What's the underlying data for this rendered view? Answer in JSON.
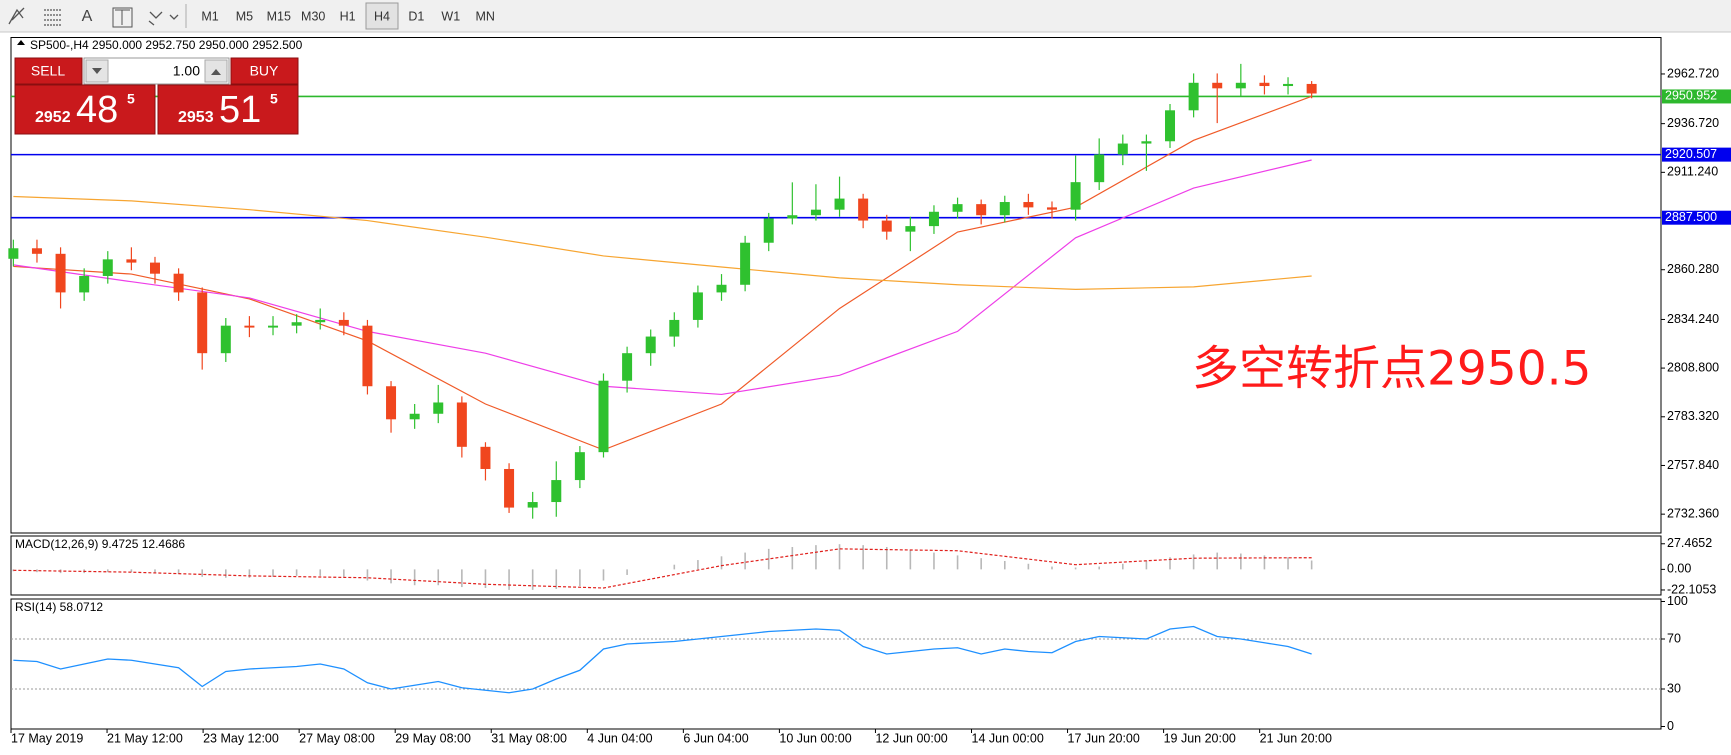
{
  "toolbar": {
    "text_tool": "A",
    "timeframes": [
      "M1",
      "M5",
      "M15",
      "M30",
      "H1",
      "H4",
      "D1",
      "W1",
      "MN"
    ],
    "active": 5
  },
  "trade_panel": {
    "sell": "SELL",
    "lots": "1.00",
    "buy": "BUY",
    "bid": {
      "big": "2952",
      "mid": "48",
      "small": "5"
    },
    "ask": {
      "big": "2953",
      "mid": "51",
      "small": "5"
    }
  },
  "chart_data": [
    {
      "type": "candlestick",
      "title": "SP500-,H4  2950.000 2952.750 2950.000 2952.500",
      "annotation": "多空转折点2950.5",
      "annotation_color": "#ff1a1a",
      "x_labels": [
        "17 May 2019",
        "21 May 12:00",
        "23 May 12:00",
        "27 May 08:00",
        "29 May 08:00",
        "31 May 08:00",
        "4 Jun 04:00",
        "6 Jun 04:00",
        "10 Jun 00:00",
        "12 Jun 00:00",
        "14 Jun 00:00",
        "17 Jun 20:00",
        "19 Jun 20:00",
        "21 Jun 20:00"
      ],
      "open": [
        2866.0,
        2871.5,
        2868.6,
        2848.4,
        2857.0,
        2865.7,
        2864.0,
        2858.2,
        2848.4,
        2816.6,
        2831.0,
        2830.0,
        2831.0,
        2832.8,
        2834.0,
        2831.0,
        2799.3,
        2782.0,
        2784.9,
        2790.8,
        2767.6,
        2756.0,
        2735.8,
        2738.7,
        2750.2,
        2764.8,
        2802.2,
        2816.6,
        2825.3,
        2834.0,
        2848.4,
        2852.4,
        2874.4,
        2887.1,
        2888.8,
        2891.7,
        2897.5,
        2886.0,
        2880.2,
        2883.1,
        2890.6,
        2894.6,
        2888.8,
        2895.7,
        2892.9,
        2891.7,
        2906.1,
        2920.6,
        2926.3,
        2927.5,
        2943.7,
        2958.1,
        2955.2,
        2958.1,
        2956.4,
        2957.5
      ],
      "high": [
        2876,
        2876,
        2872,
        2861,
        2870,
        2872,
        2867,
        2861,
        2851,
        2835,
        2836,
        2836,
        2837,
        2840,
        2838,
        2834,
        2802,
        2790,
        2800,
        2794,
        2770,
        2759,
        2744,
        2760,
        2768,
        2806,
        2820,
        2829,
        2838,
        2852,
        2858,
        2878,
        2890,
        2906,
        2905,
        2909,
        2900,
        2889,
        2888,
        2894,
        2898,
        2897,
        2899,
        2900,
        2896,
        2920,
        2929,
        2931,
        2931,
        2947,
        2963,
        2963,
        2968,
        2962,
        2961,
        2959
      ],
      "low": [
        2862,
        2864,
        2840,
        2844,
        2853,
        2860,
        2853,
        2844,
        2808,
        2812,
        2825,
        2826,
        2827,
        2829,
        2826,
        2795,
        2775,
        2777,
        2780,
        2762,
        2750,
        2733,
        2730,
        2731,
        2746,
        2762,
        2796,
        2810,
        2820,
        2830,
        2844,
        2849,
        2870,
        2884,
        2886,
        2888,
        2882,
        2876,
        2870,
        2879,
        2887,
        2884,
        2885,
        2889,
        2887,
        2886,
        2902,
        2915,
        2912,
        2924,
        2940,
        2937,
        2951,
        2952,
        2952,
        2950
      ],
      "close": [
        2871.5,
        2868.6,
        2848.4,
        2857.0,
        2865.7,
        2864.0,
        2858.2,
        2848.4,
        2816.6,
        2831.0,
        2830.0,
        2831.0,
        2832.8,
        2834.0,
        2831.0,
        2799.3,
        2782.0,
        2784.9,
        2790.8,
        2767.6,
        2756.0,
        2735.8,
        2738.7,
        2750.2,
        2764.8,
        2802.2,
        2816.6,
        2825.3,
        2834.0,
        2848.4,
        2852.4,
        2874.4,
        2887.1,
        2888.8,
        2891.7,
        2897.5,
        2886.0,
        2880.2,
        2883.1,
        2890.6,
        2894.6,
        2888.8,
        2895.7,
        2892.9,
        2891.7,
        2906.1,
        2920.6,
        2926.3,
        2927.5,
        2943.7,
        2958.1,
        2955.2,
        2958.1,
        2956.4,
        2957.5,
        2952.5
      ],
      "up_color": "#2fc12f",
      "down_color": "#f0461e",
      "lines": [
        {
          "color": "#f05a28",
          "x": [
            0,
            5,
            10,
            15,
            20,
            25,
            30,
            35,
            40,
            45,
            50,
            55
          ],
          "values": [
            2862,
            2858,
            2845,
            2823,
            2790,
            2766,
            2790,
            2840,
            2880,
            2893,
            2928,
            2951
          ]
        },
        {
          "color": "#ee3ee8",
          "x": [
            0,
            5,
            10,
            15,
            20,
            25,
            30,
            35,
            40,
            45,
            50,
            55
          ],
          "values": [
            2862.8,
            2854,
            2845.5,
            2828,
            2816.6,
            2799.3,
            2795,
            2805,
            2828,
            2877,
            2903,
            2917.7
          ]
        },
        {
          "color": "#f7a531",
          "x": [
            0,
            5,
            10,
            15,
            20,
            25,
            30,
            35,
            40,
            45,
            50,
            55
          ],
          "values": [
            2898.6,
            2896.3,
            2891.7,
            2886,
            2877.3,
            2867.5,
            2861.7,
            2856,
            2852.4,
            2850,
            2851.3,
            2857
          ]
        }
      ],
      "levels": [
        {
          "value": 2920.507,
          "color": "#0000ee"
        },
        {
          "value": 2887.5,
          "label": "2887.500",
          "color": "#0000ee"
        },
        {
          "value": 2950.952,
          "color": "#2db82d"
        }
      ],
      "xlim": [
        -0.1,
        69.8
      ],
      "ylim": [
        2722.5,
        2981.8
      ],
      "yticks": [
        {
          "value": 2962.72,
          "label": "2962.720"
        },
        {
          "value": 2936.72,
          "label": "2936.720"
        },
        {
          "value": 2911.24,
          "label": "2911.240"
        },
        {
          "value": 2860.28,
          "label": "2860.280"
        },
        {
          "value": 2834.24,
          "label": "2834.240"
        },
        {
          "value": 2808.8,
          "label": "2808.800"
        },
        {
          "value": 2783.32,
          "label": "2783.320"
        },
        {
          "value": 2757.84,
          "label": "2757.840"
        },
        {
          "value": 2732.36,
          "label": "2732.360"
        }
      ]
    },
    {
      "type": "macd",
      "title": "MACD(12,26,9) 9.4725 12.4686",
      "color": "#b8b8b8",
      "values": [
        -2,
        -3,
        -4,
        -4,
        -3,
        -3,
        -4,
        -5,
        -8,
        -9,
        -9,
        -8,
        -7,
        -7,
        -8,
        -12,
        -15,
        -17,
        -17,
        -19,
        -20,
        -22,
        -22,
        -21,
        -18,
        -12,
        -6,
        0,
        5,
        10,
        14,
        18,
        22,
        24,
        26,
        27,
        26,
        24,
        21,
        18,
        15,
        12,
        9,
        6,
        3,
        2,
        3,
        6,
        9,
        13,
        16,
        18,
        17,
        15,
        13,
        9.5
      ],
      "signal": {
        "color": "#e0201c",
        "x": [
          0,
          5,
          10,
          15,
          20,
          25,
          30,
          35,
          40,
          45,
          50,
          55
        ],
        "values": [
          -1,
          -3,
          -7,
          -9,
          -16,
          -20,
          4,
          22,
          20,
          5,
          12,
          12.5
        ]
      },
      "xlim": [
        -0.1,
        69.8
      ],
      "ylim": [
        -27.5,
        35.8
      ],
      "yticks": [
        27.4652,
        {
          "value": 0,
          "label": "0.00"
        },
        -22.1053
      ]
    },
    {
      "type": "line",
      "title": "RSI(14) 58.0712",
      "color": "#1e90ff",
      "values": [
        53,
        52,
        46,
        50,
        54,
        53,
        50,
        47,
        32,
        44,
        46,
        47,
        48,
        50,
        46,
        35,
        30,
        33,
        36,
        31,
        29,
        27,
        30,
        38,
        45,
        62,
        66,
        67,
        68,
        70,
        72,
        74,
        76,
        77,
        78,
        77,
        64,
        58,
        60,
        62,
        63,
        58,
        62,
        60,
        59,
        68,
        72,
        71,
        70,
        78,
        80,
        72,
        70,
        67,
        64,
        58
      ],
      "levels": [
        70,
        30
      ],
      "xlim": [
        -0.1,
        69.8
      ],
      "ylim": [
        -2,
        102
      ],
      "yticks": [
        100,
        70,
        30,
        0
      ]
    }
  ]
}
